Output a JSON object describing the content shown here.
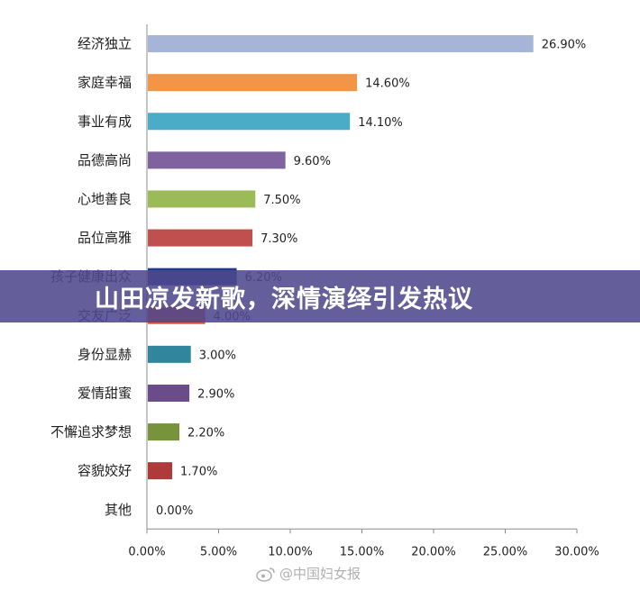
{
  "chart_data": {
    "type": "bar",
    "orientation": "horizontal",
    "categories": [
      "经济独立",
      "家庭幸福",
      "事业有成",
      "品德高尚",
      "心地善良",
      "品位高雅",
      "孩子健康出众",
      "交友广泛",
      "身份显赫",
      "爱情甜蜜",
      "不懈追求梦想",
      "容貌姣好",
      "其他"
    ],
    "values": [
      26.9,
      14.6,
      14.1,
      9.6,
      7.5,
      7.3,
      6.2,
      4.0,
      3.0,
      2.9,
      2.2,
      1.7,
      0.0
    ],
    "value_labels": [
      "26.90%",
      "14.60%",
      "14.10%",
      "9.60%",
      "7.50%",
      "7.30%",
      "6.20%",
      "4.00%",
      "3.00%",
      "2.90%",
      "2.20%",
      "1.70%",
      "0.00%"
    ],
    "colors": [
      "#A6B4D8",
      "#F39546",
      "#4AACC6",
      "#7E63A0",
      "#9BBB59",
      "#C0504D",
      "#1F3A93",
      "#E2563B",
      "#31859C",
      "#6B4C8A",
      "#77933C",
      "#B03A3A",
      "#888888"
    ],
    "xlim": [
      0,
      30
    ],
    "x_ticks": [
      "0.00%",
      "5.00%",
      "10.00%",
      "15.00%",
      "20.00%",
      "25.00%",
      "30.00%"
    ],
    "grid": false,
    "title": "",
    "xlabel": "",
    "ylabel": ""
  },
  "banner": {
    "text": "山田凉发新歌，深情演绎引发热议"
  },
  "watermark": {
    "text": "@中国妇女报",
    "icon": "weibo-icon"
  }
}
